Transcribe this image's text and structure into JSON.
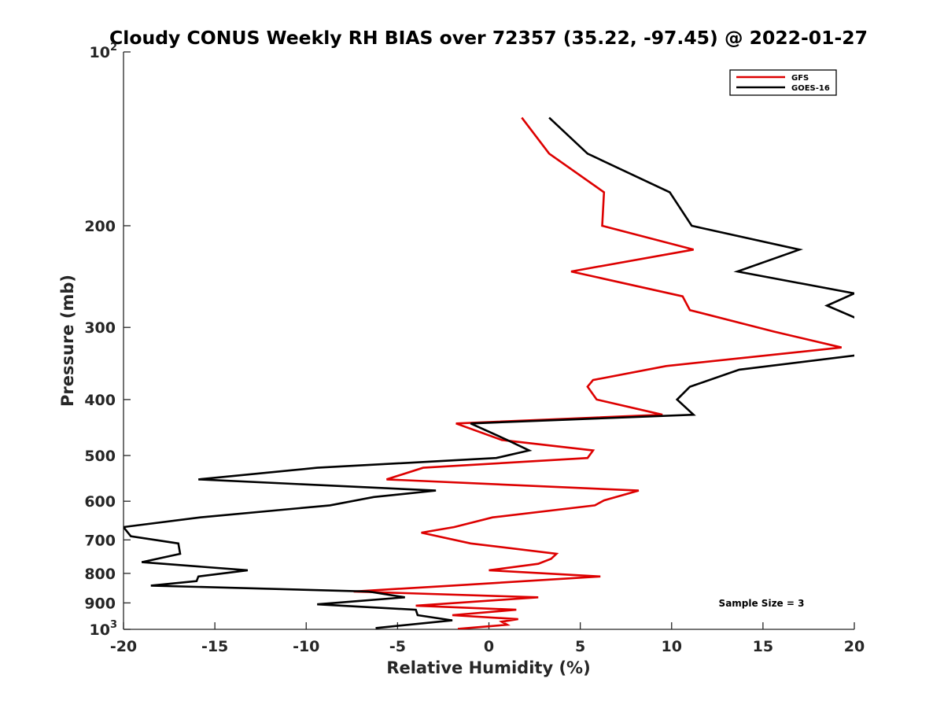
{
  "chart_data": {
    "type": "line",
    "title": "Cloudy CONUS Weekly RH BIAS over 72357 (35.22, -97.45) @ 2022-01-27",
    "xlabel": "Relative Humidity (%)",
    "ylabel": "Pressure (mb)",
    "xlim": [
      -20,
      20
    ],
    "ylim": [
      100,
      1000
    ],
    "y_scale": "log",
    "y_reversed": true,
    "grid": false,
    "legend_position": "top-right",
    "x_ticks": [
      "-20",
      "-15",
      "-10",
      "-5",
      "0",
      "5",
      "10",
      "15",
      "20"
    ],
    "y_ticks": [
      {
        "value": 200,
        "label": "200"
      },
      {
        "value": 300,
        "label": "300"
      },
      {
        "value": 400,
        "label": "400"
      },
      {
        "value": 500,
        "label": "500"
      },
      {
        "value": 600,
        "label": "600"
      },
      {
        "value": 700,
        "label": "700"
      },
      {
        "value": 800,
        "label": "800"
      },
      {
        "value": 900,
        "label": "900"
      }
    ],
    "y_top_label": {
      "base": "10",
      "exp": "2"
    },
    "y_bottom_label": {
      "base": "10",
      "exp": "3"
    },
    "annotation": "Sample Size = 3",
    "series": [
      {
        "name": "GFS",
        "color": "#dd0000",
        "points": [
          [
            1.8,
            130
          ],
          [
            3.3,
            150
          ],
          [
            6.3,
            175
          ],
          [
            6.2,
            200
          ],
          [
            11.2,
            220
          ],
          [
            4.5,
            240
          ],
          [
            10.6,
            265
          ],
          [
            11.0,
            280
          ],
          [
            15.6,
            305
          ],
          [
            19.3,
            325
          ],
          [
            9.7,
            350
          ],
          [
            5.7,
            370
          ],
          [
            5.4,
            380
          ],
          [
            5.9,
            400
          ],
          [
            9.5,
            425
          ],
          [
            -1.8,
            440
          ],
          [
            0.7,
            470
          ],
          [
            5.7,
            490
          ],
          [
            5.4,
            505
          ],
          [
            -3.6,
            525
          ],
          [
            -5.6,
            550
          ],
          [
            8.2,
            575
          ],
          [
            6.3,
            598
          ],
          [
            5.8,
            610
          ],
          [
            0.2,
            640
          ],
          [
            -1.9,
            665
          ],
          [
            -3.7,
            680
          ],
          [
            -1.0,
            710
          ],
          [
            3.7,
            740
          ],
          [
            3.4,
            755
          ],
          [
            2.7,
            770
          ],
          [
            0,
            790
          ],
          [
            6.1,
            810
          ],
          [
            -2.0,
            840
          ],
          [
            -7.4,
            860
          ],
          [
            2.7,
            880
          ],
          [
            -4.0,
            910
          ],
          [
            1.5,
            925
          ],
          [
            -2.0,
            945
          ],
          [
            1.6,
            960
          ],
          [
            0.7,
            970
          ],
          [
            1.0,
            982
          ],
          [
            -1.7,
            998
          ]
        ]
      },
      {
        "name": "GOES-16",
        "color": "#000000",
        "points": [
          [
            3.3,
            130
          ],
          [
            5.4,
            150
          ],
          [
            9.9,
            175
          ],
          [
            11.1,
            200
          ],
          [
            17.0,
            220
          ],
          [
            13.6,
            240
          ],
          [
            20.0,
            262
          ],
          [
            18.5,
            275
          ],
          [
            20.2,
            290
          ],
          [
            20.2,
            335
          ],
          [
            13.7,
            355
          ],
          [
            11.0,
            380
          ],
          [
            10.3,
            400
          ],
          [
            11.2,
            425
          ],
          [
            -1.0,
            440
          ],
          [
            1.0,
            470
          ],
          [
            2.2,
            490
          ],
          [
            0.4,
            505
          ],
          [
            -9.4,
            525
          ],
          [
            -15.9,
            550
          ],
          [
            -2.9,
            575
          ],
          [
            -6.3,
            590
          ],
          [
            -8.7,
            610
          ],
          [
            -15.8,
            640
          ],
          [
            -20.0,
            665
          ],
          [
            -19.6,
            690
          ],
          [
            -17.0,
            710
          ],
          [
            -16.9,
            740
          ],
          [
            -19.0,
            765
          ],
          [
            -13.2,
            790
          ],
          [
            -15.9,
            810
          ],
          [
            -16.0,
            825
          ],
          [
            -18.5,
            840
          ],
          [
            -6.6,
            860
          ],
          [
            -4.6,
            880
          ],
          [
            -9.4,
            905
          ],
          [
            -4.0,
            925
          ],
          [
            -3.9,
            945
          ],
          [
            -2.0,
            965
          ],
          [
            -6.2,
            995
          ]
        ]
      }
    ]
  }
}
